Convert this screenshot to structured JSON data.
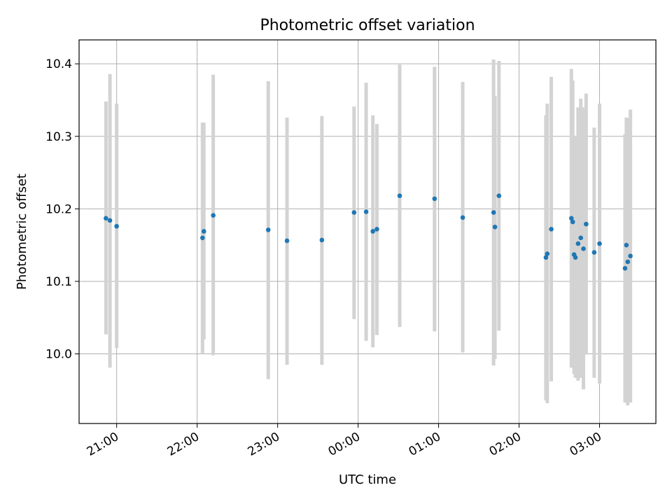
{
  "chart_data": {
    "type": "scatter",
    "title": "Photometric offset variation",
    "xlabel": "UTC time",
    "ylabel": "Photometric offset",
    "x_ticks": [
      "21:00",
      "22:00",
      "23:00",
      "00:00",
      "01:00",
      "02:00",
      "03:00"
    ],
    "y_ticks": [
      "10.0",
      "10.1",
      "10.2",
      "10.3",
      "10.4"
    ],
    "xlim": [
      "20:32",
      "03:42"
    ],
    "ylim": [
      9.904,
      10.433
    ],
    "grid": true,
    "point_color": "#1f77b4",
    "errorbar_color": "#d3d3d3",
    "points": [
      {
        "t": "20:52",
        "y": 10.187,
        "err_low": 10.027,
        "err_high": 10.348
      },
      {
        "t": "20:55",
        "y": 10.184,
        "err_low": 9.981,
        "err_high": 10.386
      },
      {
        "t": "21:00",
        "y": 10.176,
        "err_low": 10.008,
        "err_high": 10.345
      },
      {
        "t": "22:04",
        "y": 10.16,
        "err_low": 10.0,
        "err_high": 10.319
      },
      {
        "t": "22:05",
        "y": 10.169,
        "err_low": 10.02,
        "err_high": 10.319
      },
      {
        "t": "22:12",
        "y": 10.191,
        "err_low": 9.998,
        "err_high": 10.385
      },
      {
        "t": "22:53",
        "y": 10.171,
        "err_low": 9.965,
        "err_high": 10.376
      },
      {
        "t": "23:07",
        "y": 10.156,
        "err_low": 9.985,
        "err_high": 10.326
      },
      {
        "t": "23:33",
        "y": 10.157,
        "err_low": 9.985,
        "err_high": 10.328
      },
      {
        "t": "23:57",
        "y": 10.195,
        "err_low": 10.048,
        "err_high": 10.341
      },
      {
        "t": "00:06",
        "y": 10.196,
        "err_low": 10.018,
        "err_high": 10.374
      },
      {
        "t": "00:11",
        "y": 10.169,
        "err_low": 10.009,
        "err_high": 10.329
      },
      {
        "t": "00:14",
        "y": 10.172,
        "err_low": 10.026,
        "err_high": 10.317
      },
      {
        "t": "00:31",
        "y": 10.218,
        "err_low": 10.037,
        "err_high": 10.399
      },
      {
        "t": "00:57",
        "y": 10.214,
        "err_low": 10.031,
        "err_high": 10.396
      },
      {
        "t": "01:18",
        "y": 10.188,
        "err_low": 10.002,
        "err_high": 10.375
      },
      {
        "t": "01:41",
        "y": 10.195,
        "err_low": 9.984,
        "err_high": 10.406
      },
      {
        "t": "01:42",
        "y": 10.175,
        "err_low": 9.993,
        "err_high": 10.356
      },
      {
        "t": "01:45",
        "y": 10.218,
        "err_low": 10.032,
        "err_high": 10.404
      },
      {
        "t": "02:20",
        "y": 10.133,
        "err_low": 9.936,
        "err_high": 10.329
      },
      {
        "t": "02:21",
        "y": 10.138,
        "err_low": 9.932,
        "err_high": 10.345
      },
      {
        "t": "02:24",
        "y": 10.172,
        "err_low": 9.962,
        "err_high": 10.382
      },
      {
        "t": "02:39",
        "y": 10.187,
        "err_low": 9.981,
        "err_high": 10.393
      },
      {
        "t": "02:40",
        "y": 10.182,
        "err_low": 9.986,
        "err_high": 10.377
      },
      {
        "t": "02:41",
        "y": 10.137,
        "err_low": 9.972,
        "err_high": 10.301
      },
      {
        "t": "02:42",
        "y": 10.133,
        "err_low": 9.967,
        "err_high": 10.3
      },
      {
        "t": "02:44",
        "y": 10.152,
        "err_low": 9.963,
        "err_high": 10.34
      },
      {
        "t": "02:46",
        "y": 10.16,
        "err_low": 9.967,
        "err_high": 10.352
      },
      {
        "t": "02:48",
        "y": 10.145,
        "err_low": 9.951,
        "err_high": 10.34
      },
      {
        "t": "02:50",
        "y": 10.179,
        "err_low": 9.999,
        "err_high": 10.359
      },
      {
        "t": "02:56",
        "y": 10.14,
        "err_low": 9.967,
        "err_high": 10.312
      },
      {
        "t": "03:00",
        "y": 10.152,
        "err_low": 9.959,
        "err_high": 10.345
      },
      {
        "t": "03:19",
        "y": 10.118,
        "err_low": 9.933,
        "err_high": 10.303
      },
      {
        "t": "03:20",
        "y": 10.15,
        "err_low": 9.974,
        "err_high": 10.326
      },
      {
        "t": "03:21",
        "y": 10.127,
        "err_low": 9.929,
        "err_high": 10.325
      },
      {
        "t": "03:23",
        "y": 10.135,
        "err_low": 9.933,
        "err_high": 10.337
      }
    ]
  }
}
